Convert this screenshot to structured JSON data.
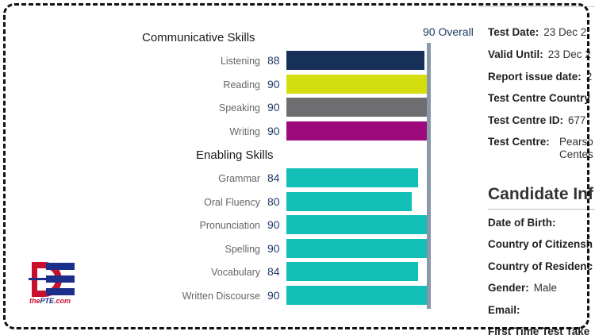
{
  "skills_chart": {
    "overall_label": "90 Overall",
    "overall_value": 90,
    "scale_max": 90,
    "communicative_heading": "Communicative Skills",
    "enabling_heading": "Enabling Skills",
    "communicative": [
      {
        "label": "Listening",
        "score": "88",
        "value": 88,
        "color": "#16305a"
      },
      {
        "label": "Reading",
        "score": "90",
        "value": 90,
        "color": "#d4de0e"
      },
      {
        "label": "Speaking",
        "score": "90",
        "value": 90,
        "color": "#6e6e70"
      },
      {
        "label": "Writing",
        "score": "90",
        "value": 90,
        "color": "#9c0a7c"
      }
    ],
    "enabling": [
      {
        "label": "Grammar",
        "score": "84",
        "value": 84,
        "color": "#12bfb6"
      },
      {
        "label": "Oral Fluency",
        "score": "80",
        "value": 80,
        "color": "#12bfb6"
      },
      {
        "label": "Pronunciation",
        "score": "90",
        "value": 90,
        "color": "#12bfb6"
      },
      {
        "label": "Spelling",
        "score": "90",
        "value": 90,
        "color": "#12bfb6"
      },
      {
        "label": "Vocabulary",
        "score": "84",
        "value": 84,
        "color": "#12bfb6"
      },
      {
        "label": "Written Discourse",
        "score": "90",
        "value": 90,
        "color": "#12bfb6"
      }
    ]
  },
  "test_info": {
    "test_date_label": "Test Date:",
    "test_date_value": "23 Dec 2",
    "valid_until_label": "Valid Until:",
    "valid_until_value": "23 Dec 2",
    "report_issue_label": "Report issue date:",
    "report_issue_value": "2",
    "country_label": "Test Centre Country",
    "centre_id_label": "Test Centre ID:",
    "centre_id_value": "677",
    "centre_label": "Test Centre:",
    "centre_value_line1": "Pearso",
    "centre_value_line2": "Centes"
  },
  "candidate": {
    "heading": "Candidate Inf",
    "dob_label": "Date of Birth:",
    "citizenship_label": "Country of Citizensh",
    "residence_label": "Country of Residenc",
    "gender_label": "Gender:",
    "gender_value": "Male",
    "email_label": "Email:",
    "first_time_label": "First Time Test Take"
  },
  "logo": {
    "text_red": "the",
    "text_blue": "PTE",
    "text_suffix": ".com"
  }
}
